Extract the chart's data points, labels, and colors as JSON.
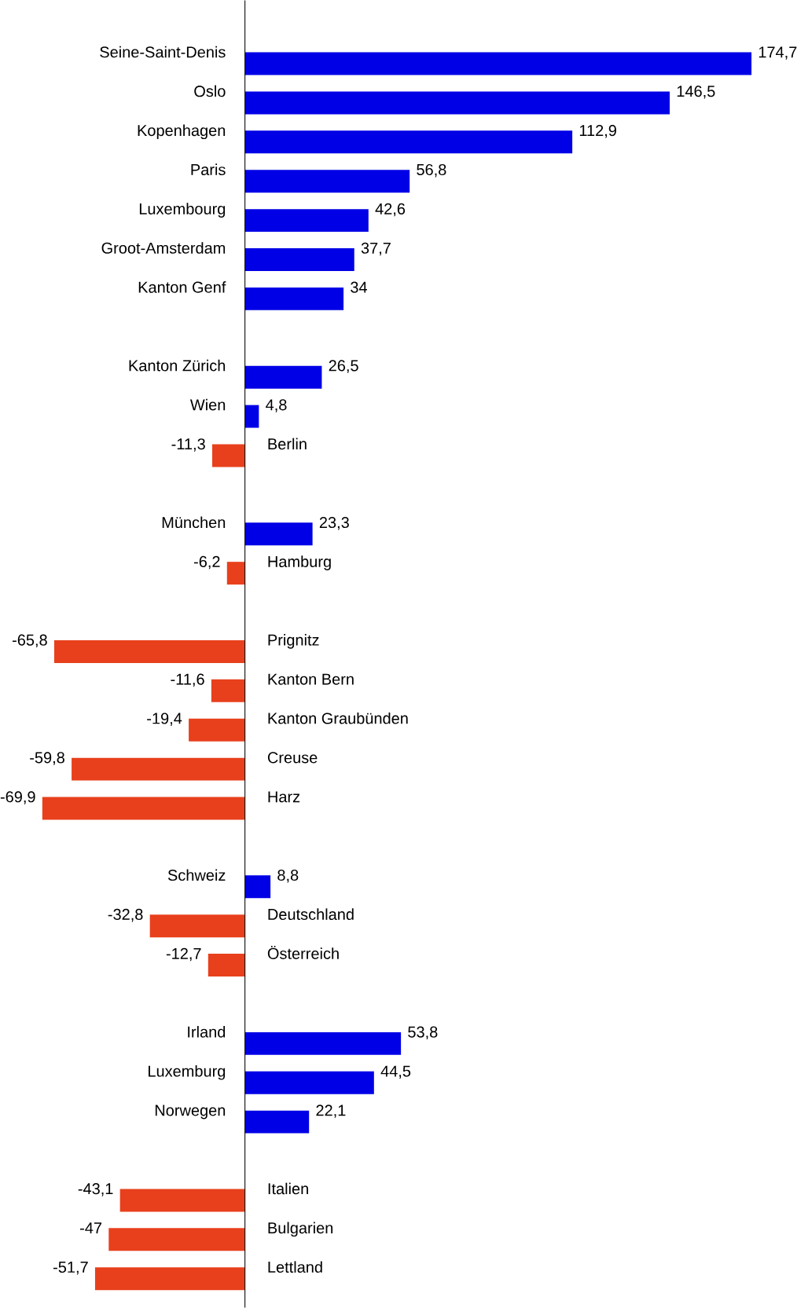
{
  "chart_data": {
    "type": "bar",
    "orientation": "horizontal",
    "categories": [
      "Seine-Saint-Denis",
      "Oslo",
      "Kopenhagen",
      "Paris",
      "Luxembourg",
      "Groot-Amsterdam",
      "Kanton Genf",
      null,
      "Kanton Zürich",
      "Wien",
      "Berlin",
      null,
      "München",
      "Hamburg",
      null,
      "Prignitz",
      "Kanton Bern",
      "Kanton Graubünden",
      "Creuse",
      "Harz",
      null,
      "Schweiz",
      "Deutschland",
      "Österreich",
      null,
      "Irland",
      "Luxemburg",
      "Norwegen",
      null,
      "Italien",
      "Bulgarien",
      "Lettland"
    ],
    "values": [
      174.7,
      146.5,
      112.9,
      56.8,
      42.6,
      37.7,
      34,
      null,
      26.5,
      4.8,
      -11.3,
      null,
      23.3,
      -6.2,
      null,
      -65.8,
      -11.6,
      -19.4,
      -59.8,
      -69.9,
      null,
      8.8,
      -32.8,
      -12.7,
      null,
      53.8,
      44.5,
      22.1,
      null,
      -43.1,
      -47,
      -51.7
    ],
    "value_labels": [
      "174,7",
      "146,5",
      "112,9",
      "56,8",
      "42,6",
      "37,7",
      "34",
      null,
      "26,5",
      "4,8",
      "-11,3",
      null,
      "23,3",
      "-6,2",
      null,
      "-65,8",
      "-11,6",
      "-19,4",
      "-59,8",
      "-69,9",
      null,
      "8,8",
      "-32,8",
      "-12,7",
      null,
      "53,8",
      "44,5",
      "22,1",
      null,
      "-43,1",
      "-47",
      "-51,7"
    ],
    "colors": [
      "#0000e6",
      "#0000e6",
      "#0000e6",
      "#0000e6",
      "#0000e6",
      "#0000e6",
      "#0000e6",
      null,
      "#0000e6",
      "#0000e6",
      "#e8401c",
      null,
      "#0000e6",
      "#e8401c",
      null,
      "#e8401c",
      "#e8401c",
      "#e8401c",
      "#e8401c",
      "#e8401c",
      null,
      "#0000e6",
      "#e8401c",
      "#e8401c",
      null,
      "#0000e6",
      "#0000e6",
      "#0000e6",
      null,
      "#e8401c",
      "#e8401c",
      "#e8401c"
    ]
  }
}
